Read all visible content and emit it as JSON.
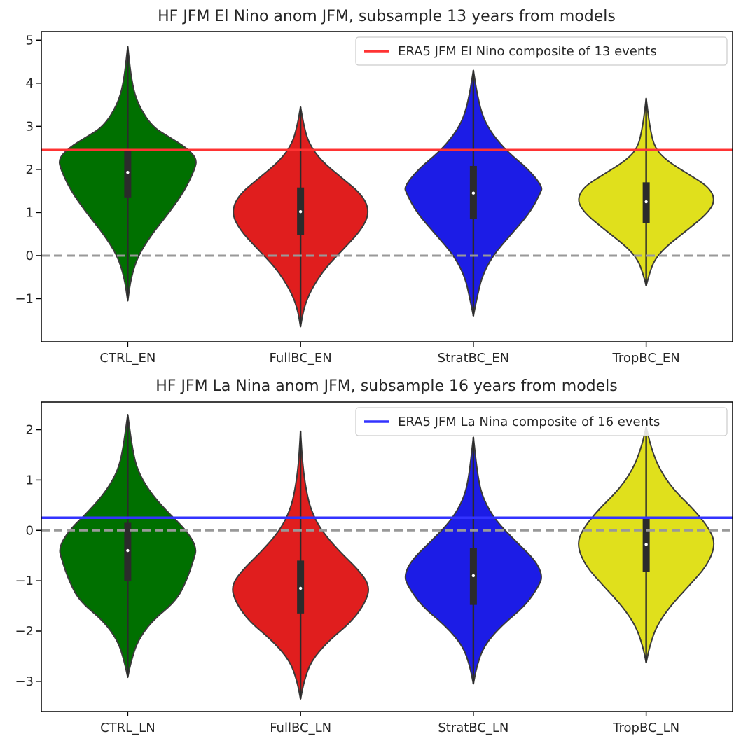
{
  "chart_data": [
    {
      "type": "violin",
      "title": "HF JFM El Nino anom JFM, subsample 13 years from models",
      "categories": [
        "CTRL_EN",
        "FullBC_EN",
        "StratBC_EN",
        "TropBC_EN"
      ],
      "colors": [
        "#007000",
        "#e01e1e",
        "#1c1ce6",
        "#e0e01c"
      ],
      "ylim": [
        -2.0,
        5.2
      ],
      "yticks": [
        -1,
        0,
        1,
        2,
        3,
        4,
        5
      ],
      "ytick_labels": [
        "−1",
        "0",
        "1",
        "2",
        "3",
        "4",
        "5"
      ],
      "reference_line": {
        "label": "ERA5 JFM El Nino composite of 13 events",
        "value": 2.45,
        "color": "#ff3333"
      },
      "zero_line": {
        "value": 0,
        "color": "#999999",
        "style": "dashed"
      },
      "legend_position": "upper right",
      "violins": [
        {
          "min": -1.05,
          "max": 4.85,
          "q1": 1.35,
          "median": 1.93,
          "q3": 2.45,
          "mode": 2.0,
          "max_width": 0.8,
          "profile": [
            [
              -1.05,
              0.0
            ],
            [
              -0.5,
              0.05
            ],
            [
              0.0,
              0.15
            ],
            [
              0.5,
              0.35
            ],
            [
              1.0,
              0.6
            ],
            [
              1.5,
              0.82
            ],
            [
              2.0,
              0.97
            ],
            [
              2.25,
              1.0
            ],
            [
              2.5,
              0.85
            ],
            [
              2.75,
              0.6
            ],
            [
              3.0,
              0.35
            ],
            [
              3.5,
              0.15
            ],
            [
              4.0,
              0.06
            ],
            [
              4.85,
              0.0
            ]
          ]
        },
        {
          "min": -1.65,
          "max": 3.45,
          "q1": 0.48,
          "median": 1.02,
          "q3": 1.58,
          "mode": 1.0,
          "max_width": 0.8,
          "profile": [
            [
              -1.65,
              0.0
            ],
            [
              -1.2,
              0.05
            ],
            [
              -0.8,
              0.15
            ],
            [
              -0.3,
              0.35
            ],
            [
              0.2,
              0.65
            ],
            [
              0.6,
              0.88
            ],
            [
              1.0,
              1.0
            ],
            [
              1.4,
              0.9
            ],
            [
              1.8,
              0.6
            ],
            [
              2.2,
              0.3
            ],
            [
              2.6,
              0.12
            ],
            [
              3.0,
              0.05
            ],
            [
              3.45,
              0.0
            ]
          ]
        },
        {
          "min": -1.4,
          "max": 4.3,
          "q1": 0.85,
          "median": 1.45,
          "q3": 2.08,
          "mode": 1.45,
          "max_width": 0.8,
          "profile": [
            [
              -1.4,
              0.0
            ],
            [
              -1.0,
              0.05
            ],
            [
              -0.5,
              0.12
            ],
            [
              0.0,
              0.28
            ],
            [
              0.5,
              0.55
            ],
            [
              1.0,
              0.82
            ],
            [
              1.45,
              0.97
            ],
            [
              1.6,
              1.0
            ],
            [
              2.0,
              0.8
            ],
            [
              2.4,
              0.5
            ],
            [
              2.8,
              0.28
            ],
            [
              3.2,
              0.14
            ],
            [
              3.7,
              0.06
            ],
            [
              4.3,
              0.0
            ]
          ]
        },
        {
          "min": -0.7,
          "max": 3.65,
          "q1": 0.75,
          "median": 1.25,
          "q3": 1.7,
          "mode": 1.25,
          "max_width": 0.8,
          "profile": [
            [
              -0.7,
              0.0
            ],
            [
              -0.4,
              0.05
            ],
            [
              -0.1,
              0.12
            ],
            [
              0.2,
              0.28
            ],
            [
              0.6,
              0.6
            ],
            [
              1.0,
              0.9
            ],
            [
              1.3,
              1.0
            ],
            [
              1.6,
              0.9
            ],
            [
              1.9,
              0.6
            ],
            [
              2.2,
              0.3
            ],
            [
              2.5,
              0.12
            ],
            [
              3.0,
              0.05
            ],
            [
              3.65,
              0.0
            ]
          ]
        }
      ]
    },
    {
      "type": "violin",
      "title": "HF JFM La Nina anom JFM, subsample 16 years from models",
      "categories": [
        "CTRL_LN",
        "FullBC_LN",
        "StratBC_LN",
        "TropBC_LN"
      ],
      "colors": [
        "#007000",
        "#e01e1e",
        "#1c1ce6",
        "#e0e01c"
      ],
      "ylim": [
        -3.6,
        2.55
      ],
      "yticks": [
        -3,
        -2,
        -1,
        0,
        1,
        2
      ],
      "ytick_labels": [
        "−3",
        "−2",
        "−1",
        "0",
        "1",
        "2"
      ],
      "reference_line": {
        "label": "ERA5 JFM La Nina composite of 16 events",
        "value": 0.25,
        "color": "#3333ff"
      },
      "zero_line": {
        "value": 0,
        "color": "#999999",
        "style": "dashed"
      },
      "legend_position": "upper right",
      "violins": [
        {
          "min": -2.92,
          "max": 2.3,
          "q1": -1.0,
          "median": -0.4,
          "q3": 0.15,
          "mode": -0.4,
          "max_width": 0.8,
          "profile": [
            [
              -2.92,
              0.0
            ],
            [
              -2.6,
              0.05
            ],
            [
              -2.2,
              0.14
            ],
            [
              -1.8,
              0.35
            ],
            [
              -1.4,
              0.7
            ],
            [
              -1.0,
              0.85
            ],
            [
              -0.6,
              0.95
            ],
            [
              -0.35,
              1.0
            ],
            [
              0.0,
              0.85
            ],
            [
              0.4,
              0.55
            ],
            [
              0.8,
              0.3
            ],
            [
              1.2,
              0.14
            ],
            [
              1.6,
              0.07
            ],
            [
              2.3,
              0.0
            ]
          ]
        },
        {
          "min": -3.35,
          "max": 1.97,
          "q1": -1.65,
          "median": -1.15,
          "q3": -0.6,
          "mode": -1.15,
          "max_width": 0.8,
          "profile": [
            [
              -3.35,
              0.0
            ],
            [
              -3.0,
              0.05
            ],
            [
              -2.6,
              0.15
            ],
            [
              -2.2,
              0.4
            ],
            [
              -1.8,
              0.75
            ],
            [
              -1.4,
              0.95
            ],
            [
              -1.1,
              1.0
            ],
            [
              -0.8,
              0.85
            ],
            [
              -0.4,
              0.55
            ],
            [
              0.0,
              0.3
            ],
            [
              0.4,
              0.15
            ],
            [
              0.8,
              0.08
            ],
            [
              1.3,
              0.03
            ],
            [
              1.97,
              0.0
            ]
          ]
        },
        {
          "min": -3.05,
          "max": 1.85,
          "q1": -1.48,
          "median": -0.9,
          "q3": -0.35,
          "mode": -0.9,
          "max_width": 0.8,
          "profile": [
            [
              -3.05,
              0.0
            ],
            [
              -2.7,
              0.05
            ],
            [
              -2.3,
              0.15
            ],
            [
              -1.9,
              0.4
            ],
            [
              -1.5,
              0.75
            ],
            [
              -1.1,
              0.95
            ],
            [
              -0.9,
              1.0
            ],
            [
              -0.6,
              0.9
            ],
            [
              -0.2,
              0.6
            ],
            [
              0.2,
              0.32
            ],
            [
              0.6,
              0.15
            ],
            [
              1.0,
              0.07
            ],
            [
              1.85,
              0.0
            ]
          ]
        },
        {
          "min": -2.63,
          "max": 2.05,
          "q1": -0.82,
          "median": -0.28,
          "q3": 0.25,
          "mode": -0.28,
          "max_width": 0.8,
          "profile": [
            [
              -2.63,
              0.0
            ],
            [
              -2.3,
              0.05
            ],
            [
              -1.9,
              0.15
            ],
            [
              -1.5,
              0.35
            ],
            [
              -1.1,
              0.62
            ],
            [
              -0.7,
              0.88
            ],
            [
              -0.3,
              1.0
            ],
            [
              0.0,
              0.93
            ],
            [
              0.4,
              0.7
            ],
            [
              0.8,
              0.4
            ],
            [
              1.2,
              0.2
            ],
            [
              1.6,
              0.08
            ],
            [
              2.05,
              0.0
            ]
          ]
        }
      ]
    }
  ]
}
